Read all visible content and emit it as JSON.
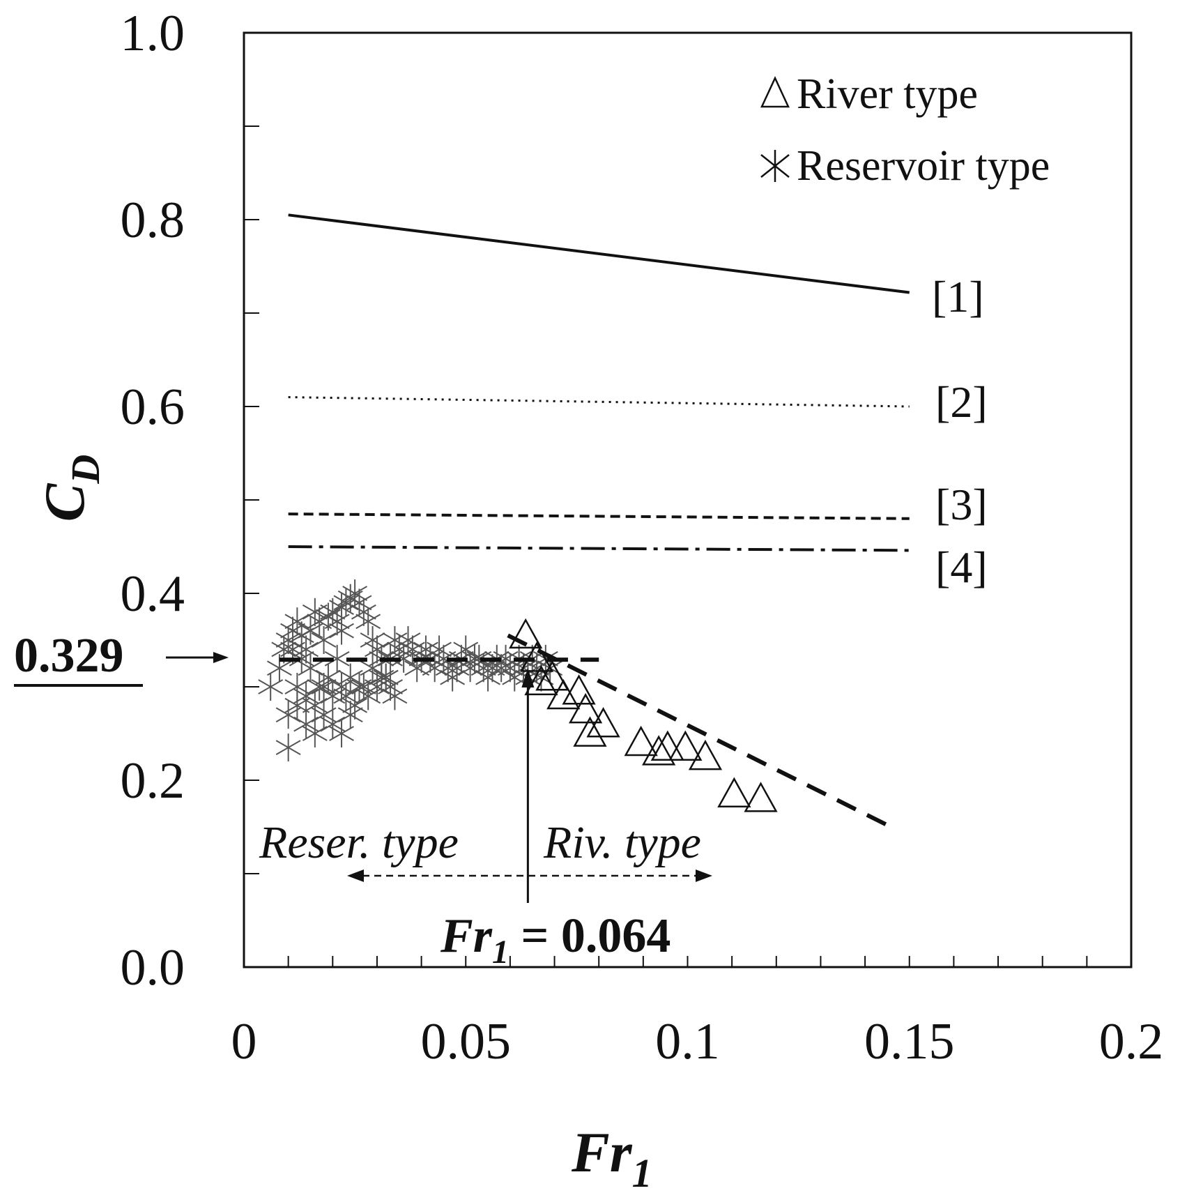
{
  "chart_data": {
    "type": "scatter",
    "xlabel": "Fr",
    "xlabel_sub": "1",
    "ylabel": "C",
    "ylabel_sub": "D",
    "xlim": [
      0,
      0.2
    ],
    "ylim": [
      0,
      1.0
    ],
    "x_ticks": [
      "0",
      "0.05",
      "0.1",
      "0.15",
      "0.2"
    ],
    "x_tick_values": [
      0,
      0.05,
      0.1,
      0.15,
      0.2
    ],
    "y_ticks": [
      "0.0",
      "0.2",
      "0.4",
      "0.6",
      "0.8",
      "1.0"
    ],
    "y_tick_values": [
      0,
      0.2,
      0.4,
      0.6,
      0.8,
      1.0
    ],
    "legend": {
      "position": "top-right",
      "entries": [
        {
          "symbol": "triangle",
          "label": "River type"
        },
        {
          "symbol": "asterisk",
          "label": "Reservoir type"
        }
      ]
    },
    "lines": [
      {
        "label": "[1]",
        "style": "solid",
        "x": [
          0.01,
          0.15
        ],
        "y": [
          0.805,
          0.722
        ]
      },
      {
        "label": "[2]",
        "style": "dotted",
        "x": [
          0.01,
          0.15
        ],
        "y": [
          0.61,
          0.6
        ]
      },
      {
        "label": "[3]",
        "style": "dashed",
        "x": [
          0.01,
          0.15
        ],
        "y": [
          0.485,
          0.48
        ]
      },
      {
        "label": "[4]",
        "style": "dashdot",
        "x": [
          0.01,
          0.15
        ],
        "y": [
          0.45,
          0.446
        ]
      }
    ],
    "fit_lines": [
      {
        "name": "reservoir-fit",
        "style": "long-dash",
        "x": [
          0.008,
          0.08
        ],
        "y": [
          0.329,
          0.329
        ]
      },
      {
        "name": "river-fit",
        "style": "long-dash",
        "x": [
          0.0595,
          0.145
        ],
        "y": [
          0.355,
          0.152
        ]
      }
    ],
    "series": [
      {
        "name": "River type",
        "marker": "triangle",
        "x": [
          0.0635,
          0.066,
          0.067,
          0.0695,
          0.072,
          0.0755,
          0.077,
          0.078,
          0.081,
          0.0895,
          0.0935,
          0.0955,
          0.0995,
          0.104,
          0.1105,
          0.1165
        ],
        "y": [
          0.355,
          0.33,
          0.305,
          0.31,
          0.29,
          0.295,
          0.275,
          0.25,
          0.26,
          0.24,
          0.23,
          0.235,
          0.235,
          0.225,
          0.185,
          0.18
        ]
      },
      {
        "name": "Reservoir type",
        "marker": "asterisk",
        "x": [
          0.006,
          0.008,
          0.009,
          0.01,
          0.011,
          0.012,
          0.013,
          0.014,
          0.015,
          0.016,
          0.017,
          0.018,
          0.019,
          0.02,
          0.021,
          0.022,
          0.022,
          0.023,
          0.024,
          0.025,
          0.026,
          0.027,
          0.028,
          0.029,
          0.03,
          0.031,
          0.032,
          0.033,
          0.034,
          0.035,
          0.036,
          0.037,
          0.038,
          0.039,
          0.04,
          0.041,
          0.042,
          0.043,
          0.044,
          0.045,
          0.046,
          0.047,
          0.048,
          0.049,
          0.05,
          0.051,
          0.052,
          0.053,
          0.054,
          0.055,
          0.056,
          0.057,
          0.058,
          0.059,
          0.06,
          0.061,
          0.062,
          0.063,
          0.064,
          0.065,
          0.066,
          0.067,
          0.068,
          0.069,
          0.01,
          0.012,
          0.014,
          0.016,
          0.018,
          0.02,
          0.022,
          0.024,
          0.012,
          0.014,
          0.016,
          0.018,
          0.02,
          0.022,
          0.024,
          0.026,
          0.028,
          0.03,
          0.032,
          0.034,
          0.011,
          0.013,
          0.015,
          0.017,
          0.019,
          0.021,
          0.023,
          0.025,
          0.027,
          0.029,
          0.031,
          0.033
        ],
        "y": [
          0.3,
          0.32,
          0.34,
          0.35,
          0.36,
          0.37,
          0.355,
          0.34,
          0.36,
          0.38,
          0.37,
          0.35,
          0.375,
          0.38,
          0.37,
          0.385,
          0.36,
          0.39,
          0.395,
          0.4,
          0.39,
          0.38,
          0.37,
          0.35,
          0.34,
          0.33,
          0.31,
          0.33,
          0.35,
          0.34,
          0.33,
          0.35,
          0.34,
          0.32,
          0.33,
          0.34,
          0.33,
          0.32,
          0.34,
          0.33,
          0.32,
          0.31,
          0.32,
          0.33,
          0.34,
          0.32,
          0.33,
          0.33,
          0.32,
          0.31,
          0.32,
          0.33,
          0.32,
          0.33,
          0.32,
          0.31,
          0.33,
          0.32,
          0.31,
          0.33,
          0.32,
          0.31,
          0.33,
          0.32,
          0.27,
          0.28,
          0.26,
          0.25,
          0.27,
          0.26,
          0.25,
          0.27,
          0.3,
          0.29,
          0.28,
          0.3,
          0.29,
          0.3,
          0.31,
          0.3,
          0.29,
          0.3,
          0.31,
          0.29,
          0.34,
          0.33,
          0.32,
          0.3,
          0.31,
          0.33,
          0.29,
          0.28,
          0.3,
          0.32,
          0.31,
          0.3
        ]
      }
    ],
    "outlier_reservoir": {
      "x": 0.01,
      "y": 0.235
    },
    "annotations": {
      "value_label": "0.329",
      "threshold_sub": "1",
      "threshold_value": "0.064",
      "threshold_prefix": "Fr",
      "threshold_x": 0.064,
      "reservoir_region": "Reser. type",
      "river_region": "Riv. type"
    }
  }
}
